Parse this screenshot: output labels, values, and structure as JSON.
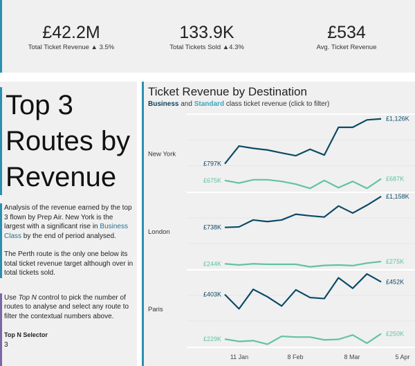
{
  "kpis": [
    {
      "value": "£42.2M",
      "label": "Total Ticket Revenue ▲ 3.5%"
    },
    {
      "value": "133.9K",
      "label": "Total Tickets Sold  ▲4.3%"
    },
    {
      "value": "£534",
      "label": "Avg. Ticket Revenue"
    }
  ],
  "left": {
    "title": "Top 3 Routes by Revenue",
    "desc1_a": "Analysis of the revenue earned by the top 3 flown by Prep Air. New York is the largest with a significant rise in ",
    "desc1_link": "Business Class",
    "desc1_b": " by the end of period analysed.",
    "desc2": "The Perth route is the only one below its total ticket revenue target although over in total tickets sold.",
    "help_a": "Use ",
    "help_em": "Top N",
    "help_b": " control to pick the number of routes to analyse and select any route to filter the contextual numbers above.",
    "selector_label": "Top N Selector",
    "selector_value": "3"
  },
  "chart_data": {
    "type": "line",
    "title": "Ticket Revenue by Destination",
    "subtitle_business": "Business",
    "subtitle_and": " and ",
    "subtitle_standard": "Standard",
    "subtitle_rest": " class ticket revenue (click to filter)",
    "colors": {
      "Business": "#0b4a66",
      "Standard": "#62c2a2"
    },
    "x": [
      "4 Jan",
      "11 Jan",
      "18 Jan",
      "25 Jan",
      "1 Feb",
      "8 Feb",
      "15 Feb",
      "22 Feb",
      "1 Mar",
      "8 Mar",
      "15 Mar",
      "22 Mar"
    ],
    "x_ticks": [
      "11 Jan",
      "8 Feb",
      "8 Mar",
      "5 Apr"
    ],
    "panes": [
      {
        "name": "New York",
        "series": [
          {
            "name": "Business",
            "values": [
              797,
              927,
              910,
              898,
              876,
              856,
              903,
              861,
              1064,
              1064,
              1118,
              1126
            ],
            "start_label": "£797K",
            "end_label": "£1,126K"
          },
          {
            "name": "Standard",
            "values": [
              675,
              656,
              680,
              680,
              668,
              648,
              617,
              675,
              622,
              668,
              617,
              687
            ],
            "start_label": "£675K",
            "end_label": "£687K"
          }
        ]
      },
      {
        "name": "London",
        "series": [
          {
            "name": "Business",
            "values": [
              738,
              745,
              839,
              817,
              839,
              917,
              895,
              879,
              1029,
              933,
              1039,
              1158
            ],
            "start_label": "£738K",
            "end_label": "£1,158K"
          },
          {
            "name": "Standard",
            "values": [
              244,
              228,
              244,
              237,
              237,
              237,
              203,
              222,
              228,
              219,
              253,
              275
            ],
            "start_label": "£244K",
            "end_label": "£275K"
          }
        ]
      },
      {
        "name": "Paris",
        "series": [
          {
            "name": "Business",
            "values": [
              403,
              347,
              423,
              394,
              358,
              421,
              391,
              387,
              468,
              427,
              483,
              452
            ],
            "start_label": "£403K",
            "end_label": "£452K"
          },
          {
            "name": "Standard",
            "values": [
              229,
              220,
              223,
              209,
              240,
              237,
              237,
              226,
              228,
              245,
              213,
              250
            ],
            "start_label": "£229K",
            "end_label": "£250K"
          }
        ]
      }
    ]
  }
}
